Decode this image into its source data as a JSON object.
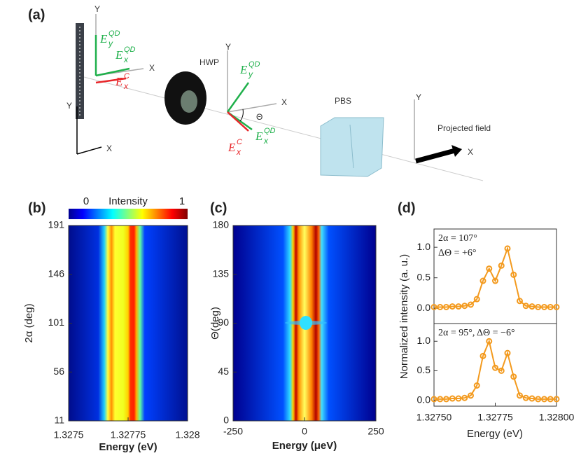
{
  "figure": {
    "panel_labels": [
      "(a)",
      "(b)",
      "(c)",
      "(d)"
    ]
  },
  "diagram": {
    "labels": [
      "Y",
      "X",
      "Y",
      "X",
      "Y",
      "X",
      "Y",
      "X",
      "HWP",
      "PBS",
      "Projected field",
      "Θ"
    ],
    "fields": [
      {
        "base": "E",
        "sub": "y",
        "sup": "QD",
        "color": "#1fb04b"
      },
      {
        "base": "E",
        "sub": "x",
        "sup": "QD",
        "color": "#1fb04b"
      },
      {
        "base": "E",
        "sub": "x",
        "sup": "C",
        "color": "#e8262a"
      },
      {
        "base": "E",
        "sub": "y",
        "sup": "QD",
        "color": "#1fb04b"
      },
      {
        "base": "E",
        "sub": "x",
        "sup": "QD",
        "color": "#1fb04b"
      },
      {
        "base": "E",
        "sub": "x",
        "sup": "C",
        "color": "#e8262a"
      }
    ]
  },
  "chart_data": [
    {
      "type": "heatmap",
      "colorbar": {
        "label": "Intensity",
        "min_label": "0",
        "max_label": "1"
      },
      "xlabel": "Energy (eV)",
      "ylabel": "2α (deg)",
      "xlim": [
        1.3275,
        1.328
      ],
      "xticks": [
        1.3275,
        1.32775,
        1.328
      ],
      "ylim": [
        11,
        191
      ],
      "yticks": [
        11,
        56,
        101,
        146,
        191
      ]
    },
    {
      "type": "heatmap",
      "xlabel": "Energy (μeV)",
      "ylabel": "Θ(deg)",
      "xlim": [
        -250,
        250
      ],
      "xticks": [
        -250,
        0,
        250
      ],
      "ylim": [
        0,
        180
      ],
      "yticks": [
        0,
        45,
        90,
        135,
        180
      ]
    },
    {
      "type": "line",
      "xlabel": "Energy (eV)",
      "ylabel": "Normalized intensity (a. u.)",
      "color": "#f39a1e",
      "xlim": [
        1.3275,
        1.328
      ],
      "xticks": [
        {
          "value": 1.3275,
          "label": "1.32750"
        },
        {
          "value": 1.32775,
          "label": "1.32775"
        },
        {
          "value": 1.328,
          "label": "1.32800"
        }
      ],
      "x": [
        1.3275,
        1.327525,
        1.32755,
        1.327575,
        1.3276,
        1.327625,
        1.32765,
        1.327675,
        1.3277,
        1.327725,
        1.32775,
        1.327775,
        1.3278,
        1.327825,
        1.32785,
        1.327875,
        1.3279,
        1.327925,
        1.32795,
        1.327975,
        1.328
      ],
      "subplots": [
        {
          "annotations": [
            "2α = 107°",
            "ΔΘ = +6°"
          ],
          "ylim": [
            -0.25,
            1.3
          ],
          "yticks": [
            {
              "value": 0,
              "label": "0.0"
            },
            {
              "value": 0.5,
              "label": "0.5"
            },
            {
              "value": 1,
              "label": "1.0"
            }
          ],
          "values": [
            0.02,
            0.02,
            0.02,
            0.03,
            0.03,
            0.04,
            0.06,
            0.15,
            0.45,
            0.65,
            0.45,
            0.7,
            0.98,
            0.55,
            0.12,
            0.04,
            0.03,
            0.02,
            0.02,
            0.02,
            0.02
          ]
        },
        {
          "annotations": [
            "2α = 95°, ΔΘ = −6°"
          ],
          "ylim": [
            -0.1,
            1.3
          ],
          "yticks": [
            {
              "value": 0,
              "label": "0.0"
            },
            {
              "value": 0.5,
              "label": "0.5"
            },
            {
              "value": 1,
              "label": "1.0"
            }
          ],
          "values": [
            0.02,
            0.02,
            0.02,
            0.03,
            0.03,
            0.04,
            0.08,
            0.25,
            0.75,
            1.0,
            0.55,
            0.5,
            0.8,
            0.4,
            0.08,
            0.04,
            0.03,
            0.02,
            0.02,
            0.02,
            0.02
          ]
        }
      ]
    }
  ]
}
